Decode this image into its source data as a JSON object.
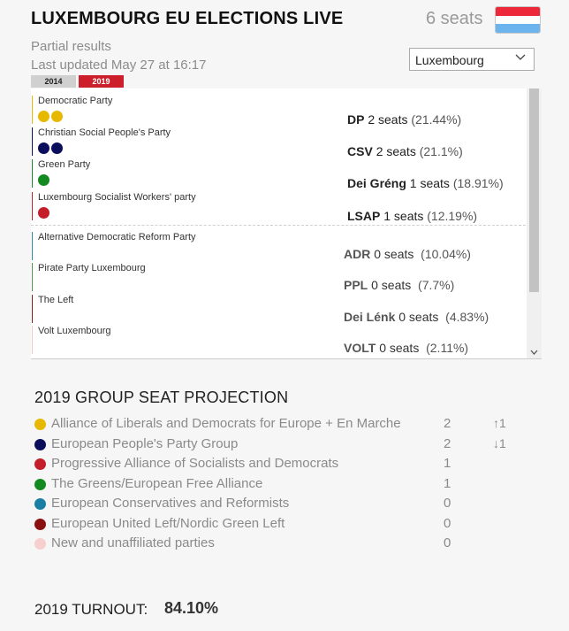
{
  "header": {
    "title": "LUXEMBOURG EU ELECTIONS LIVE",
    "total_seats": "6 seats",
    "flag_colors": [
      "#ed2939",
      "#ffffff",
      "#6cb4ee"
    ]
  },
  "status": {
    "partial": "Partial results",
    "updated": "Last updated May 27 at 16:17"
  },
  "country_select": {
    "value": "Luxembourg",
    "icon": "chevron-down-icon"
  },
  "year_tabs": [
    {
      "label": "2014",
      "active": false
    },
    {
      "label": "2019",
      "active": true
    }
  ],
  "parties": [
    {
      "name": "Democratic Party",
      "abbr": "DP",
      "seats": "2 seats",
      "pct": "(21.44%)",
      "color": "#e6b800",
      "seat_count": 2
    },
    {
      "name": "Christian Social People's Party",
      "abbr": "CSV",
      "seats": "2 seats",
      "pct": "(21.1%)",
      "color": "#0b0e5b",
      "seat_count": 2
    },
    {
      "name": "Green Party",
      "abbr": "Dei Gréng",
      "seats": "1 seats",
      "pct": "(18.91%)",
      "color": "#138a1f",
      "seat_count": 1
    },
    {
      "name": "Luxembourg Socialist Workers' party",
      "abbr": "LSAP",
      "seats": "1 seats",
      "pct": "(12.19%)",
      "color": "#c41e2a",
      "seat_count": 1
    },
    {
      "name": "Alternative Democratic Reform Party",
      "abbr": "ADR",
      "seats": "0 seats",
      "pct": "(10.04%)",
      "color": "#2a8aa8",
      "seat_count": 0
    },
    {
      "name": "Pirate Party Luxembourg",
      "abbr": "PPL",
      "seats": "0 seats",
      "pct": "(7.7%)",
      "color": "#4a9a4a",
      "seat_count": 0
    },
    {
      "name": "The Left",
      "abbr": "Dei Lénk",
      "seats": "0 seats",
      "pct": "(4.83%)",
      "color": "#8b1a1a",
      "seat_count": 0
    },
    {
      "name": "Volt Luxembourg",
      "abbr": "VOLT",
      "seats": "0 seats",
      "pct": "(2.11%)",
      "color": "#f5c5c5",
      "seat_count": 0
    }
  ],
  "projection": {
    "title": "2019 GROUP SEAT PROJECTION",
    "groups": [
      {
        "name": "Alliance of Liberals and Democrats for Europe + En Marche",
        "seats": "2",
        "change": "↑1",
        "color": "#e6b800"
      },
      {
        "name": "European People's Party Group",
        "seats": "2",
        "change": "↓1",
        "color": "#0b0e5b"
      },
      {
        "name": "Progressive Alliance of Socialists and Democrats",
        "seats": "1",
        "change": "",
        "color": "#c41e2a"
      },
      {
        "name": "The Greens/European Free Alliance",
        "seats": "1",
        "change": "",
        "color": "#138a1f"
      },
      {
        "name": "European Conservatives and Reformists",
        "seats": "0",
        "change": "",
        "color": "#1a7fa3"
      },
      {
        "name": "European United Left/Nordic Green Left",
        "seats": "0",
        "change": "",
        "color": "#8b1111"
      },
      {
        "name": "New and unaffiliated parties",
        "seats": "0",
        "change": "",
        "color": "#f7cfcf"
      }
    ]
  },
  "turnout": {
    "label": "2019 TURNOUT:",
    "value": "84.10%"
  }
}
